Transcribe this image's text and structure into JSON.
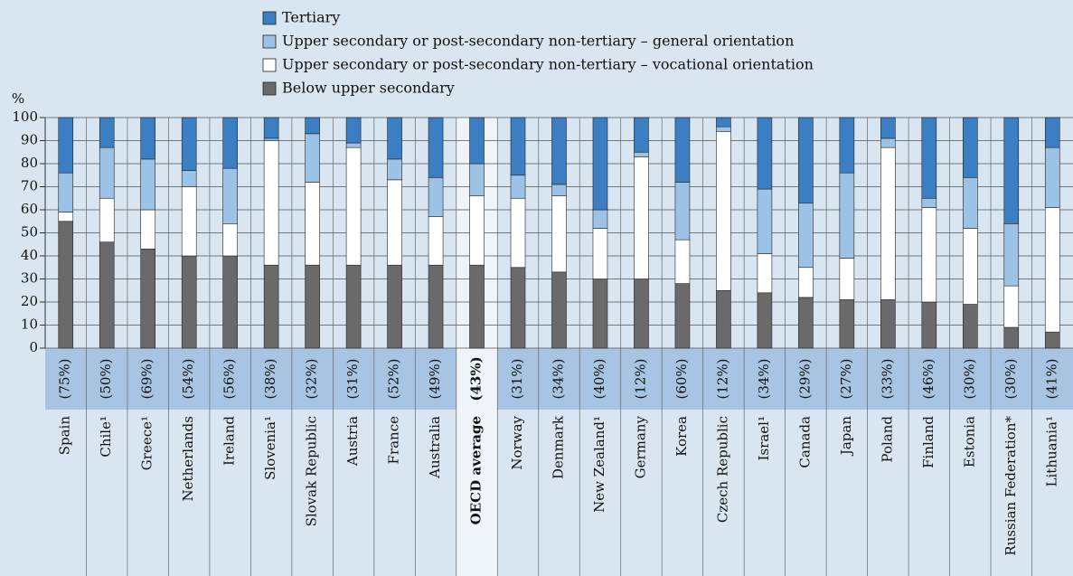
{
  "chart_data": {
    "type": "bar",
    "stacked": true,
    "y_label": "%",
    "categories": [
      "Spain",
      "Chile¹",
      "Greece¹",
      "Netherlands",
      "Ireland",
      "Slovenia¹",
      "Slovak Republic",
      "Austria",
      "France",
      "Australia",
      "OECD average",
      "Norway",
      "Denmark",
      "New Zealand¹",
      "Germany",
      "Korea",
      "Czech Republic",
      "Israel¹",
      "Canada",
      "Japan",
      "Poland",
      "Finland",
      "Estonia",
      "Russian Federation*",
      "Lithuania¹"
    ],
    "annotations": [
      "(75%)",
      "(50%)",
      "(69%)",
      "(54%)",
      "(56%)",
      "(38%)",
      "(32%)",
      "(31%)",
      "(52%)",
      "(49%)",
      "(43%)",
      "(31%)",
      "(34%)",
      "(40%)",
      "(12%)",
      "(60%)",
      "(12%)",
      "(34%)",
      "(29%)",
      "(27%)",
      "(33%)",
      "(46%)",
      "(30%)",
      "(30%)",
      "(41%)"
    ],
    "highlight_index": 10,
    "series": [
      {
        "name": "Tertiary",
        "color": "#3b7fc2",
        "values": [
          24,
          13,
          18,
          23,
          22,
          9,
          7,
          11,
          18,
          26,
          20,
          25,
          29,
          40,
          15,
          28,
          4,
          31,
          37,
          24,
          9,
          35,
          26,
          46,
          13
        ]
      },
      {
        "name": "Upper secondary or post-secondary non-tertiary – general orientation",
        "color": "#9cc2e5",
        "values": [
          17,
          22,
          22,
          7,
          24,
          1,
          21,
          2,
          9,
          17,
          14,
          10,
          5,
          8,
          2,
          25,
          2,
          28,
          28,
          37,
          4,
          4,
          22,
          27,
          26
        ]
      },
      {
        "name": "Upper secondary or post-secondary non-tertiary – vocational orientation",
        "color": "#ffffff",
        "values": [
          4,
          19,
          17,
          30,
          14,
          54,
          36,
          51,
          37,
          21,
          30,
          30,
          33,
          22,
          53,
          19,
          69,
          17,
          13,
          18,
          66,
          41,
          33,
          18,
          54
        ]
      },
      {
        "name": "Below upper secondary",
        "color": "#6a6a6a",
        "values": [
          55,
          46,
          43,
          40,
          40,
          36,
          36,
          36,
          36,
          36,
          36,
          35,
          33,
          30,
          30,
          28,
          25,
          24,
          22,
          21,
          21,
          20,
          19,
          9,
          7
        ]
      }
    ],
    "ylim": [
      0,
      100
    ],
    "yticks": [
      0,
      10,
      20,
      30,
      40,
      50,
      60,
      70,
      80,
      90,
      100
    ],
    "grid": true
  }
}
